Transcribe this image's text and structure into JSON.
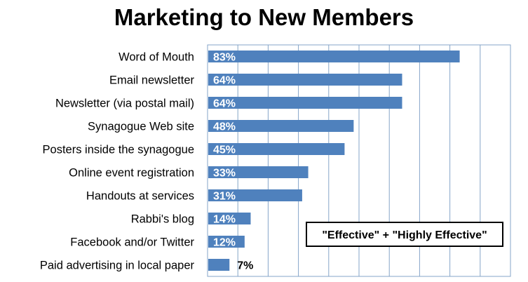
{
  "chart_data": {
    "type": "bar",
    "orientation": "horizontal",
    "title": "Marketing to New Members",
    "xlabel": "",
    "ylabel": "",
    "xlim": [
      0,
      100
    ],
    "value_suffix": "%",
    "grid": true,
    "bar_color": "#4F81BD",
    "categories": [
      "Word of Mouth",
      "Email newsletter",
      "Newsletter (via postal mail)",
      "Synagogue Web site",
      "Posters inside the synagogue",
      "Online event registration",
      "Handouts at services",
      "Rabbi's blog",
      "Facebook and/or Twitter",
      "Paid advertising in local paper"
    ],
    "values": [
      83,
      64,
      64,
      48,
      45,
      33,
      31,
      14,
      12,
      7
    ],
    "annotation": "\"Effective\" + \"Highly Effective\"",
    "legend_position": "bottom-right"
  }
}
